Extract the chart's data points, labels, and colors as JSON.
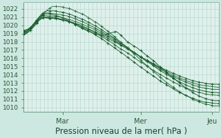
{
  "xlabel": "Pression niveau de la mer( hPa )",
  "bg_color": "#cce8e0",
  "plot_bg_color": "#dff0eb",
  "grid_color": "#b8d8d0",
  "ylim": [
    1009.5,
    1022.8
  ],
  "yticks": [
    1010,
    1011,
    1012,
    1013,
    1014,
    1015,
    1016,
    1017,
    1018,
    1019,
    1020,
    1021,
    1022
  ],
  "xlim": [
    0,
    240
  ],
  "xtick_labels": [
    "Mar",
    "Mer",
    "Jeu"
  ],
  "xtick_positions": [
    48,
    144,
    232
  ],
  "xlabel_fontsize": 8.5,
  "ytick_fontsize": 6.5,
  "xtick_fontsize": 7,
  "line_colors": [
    "#1a5c30",
    "#246635",
    "#2d7040",
    "#1a5c30",
    "#246635",
    "#2d7040",
    "#1a5c30",
    "#1a5c30"
  ],
  "marker_every": 8
}
